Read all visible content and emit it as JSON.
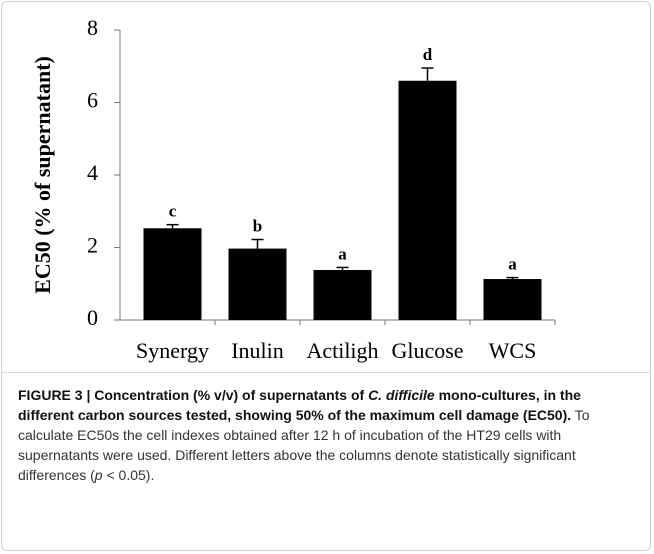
{
  "chart_data": {
    "type": "bar",
    "y_label": "EC50 (% of supernatant)",
    "categories": [
      "Synergy",
      "Inulin",
      "Actiligh",
      "Glucose",
      "WCS"
    ],
    "values": [
      2.53,
      1.97,
      1.38,
      6.6,
      1.13
    ],
    "errors": [
      0.1,
      0.25,
      0.07,
      0.35,
      0.04
    ],
    "annotations": [
      "c",
      "b",
      "a",
      "d",
      "a"
    ],
    "color": "#000000",
    "ylim": [
      0,
      8
    ],
    "yticks": [
      0,
      2,
      4,
      6,
      8
    ],
    "grid": false
  },
  "caption": [
    {
      "text": "FIGURE 3 | Concentration (% v/v) of supernatants of ",
      "style": "bold"
    },
    {
      "text": "C. difficile",
      "style": "bold-italic"
    },
    {
      "text": " mono-cultures, in the different carbon sources tested, showing 50% of the maximum cell damage (EC50).",
      "style": "bold"
    },
    {
      "text": " To calculate EC50s the cell indexes obtained after 12 h of incubation of the HT29 cells with supernatants were used. Different letters above the columns denote statistically significant differences (",
      "style": "normal"
    },
    {
      "text": "p",
      "style": "italic"
    },
    {
      "text": " < 0.05).",
      "style": "normal"
    }
  ]
}
